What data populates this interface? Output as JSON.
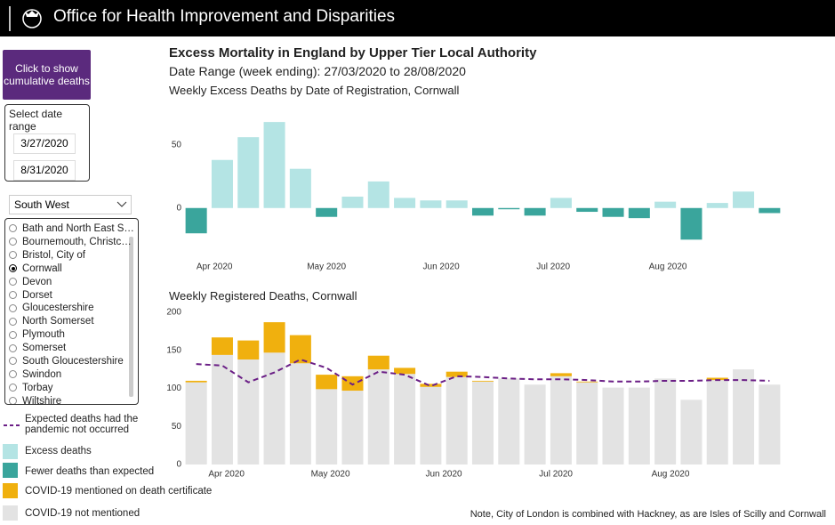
{
  "header": {
    "title": "Office for Health Improvement and Disparities"
  },
  "sidebar": {
    "button": "Click to show cumulative deaths",
    "date_range": {
      "label": "Select date range",
      "start": "3/27/2020",
      "end": "8/31/2020"
    },
    "region": "South West",
    "areas": [
      "Bath and North East S…",
      "Bournemouth, Christc…",
      "Bristol, City of",
      "Cornwall",
      "Devon",
      "Dorset",
      "Gloucestershire",
      "North Somerset",
      "Plymouth",
      "Somerset",
      "South Gloucestershire",
      "Swindon",
      "Torbay",
      "Wiltshire"
    ],
    "selected_index": 3
  },
  "title": "Excess Mortality in England by Upper Tier Local Authority",
  "subtitle": "Date Range (week ending): 27/03/2020 to 28/08/2020",
  "note": "Note, City of London is combined with Hackney, as are Isles of Scilly and Cornwall",
  "chart_data": [
    {
      "type": "bar",
      "title": "Weekly Excess Deaths by Date of Registration, Cornwall",
      "categories": [
        null,
        null,
        null,
        null,
        null,
        null,
        null,
        null,
        null,
        null,
        null,
        null,
        null,
        null,
        null,
        null,
        null,
        null,
        null,
        null,
        null,
        null,
        null
      ],
      "values": [
        -20,
        38,
        56,
        68,
        31,
        -7,
        9,
        21,
        8,
        6,
        6,
        -6,
        -1,
        -6,
        8,
        -3,
        -7,
        -8,
        5,
        -25,
        4,
        13,
        -4
      ],
      "legend": [
        {
          "name": "Excess deaths",
          "color": "#b4e4e4"
        },
        {
          "name": "Fewer deaths than expected",
          "color": "#3aa59c"
        }
      ],
      "xlim": [
        -0.5,
        22.5
      ],
      "xticks": [
        {
          "value": 0.7,
          "label": "Apr 2020"
        },
        {
          "value": 5.0,
          "label": "May 2020"
        },
        {
          "value": 9.4,
          "label": "Jun 2020"
        },
        {
          "value": 13.7,
          "label": "Jul 2020"
        },
        {
          "value": 18.1,
          "label": "Aug 2020"
        }
      ],
      "ylim": [
        -29,
        73
      ],
      "yticks": [
        0,
        50
      ]
    },
    {
      "type": "bar",
      "stacked": true,
      "title": "Weekly Registered Deaths, Cornwall",
      "categories": [
        null,
        null,
        null,
        null,
        null,
        null,
        null,
        null,
        null,
        null,
        null,
        null,
        null,
        null,
        null,
        null,
        null,
        null,
        null,
        null,
        null,
        null,
        null
      ],
      "series": [
        {
          "name": "COVID-19 not mentioned",
          "color": "#e3e3e3",
          "values": [
            108,
            144,
            138,
            147,
            133,
            99,
            97,
            125,
            119,
            102,
            115,
            109,
            113,
            105,
            116,
            108,
            101,
            101,
            113,
            85,
            111,
            125,
            105
          ]
        },
        {
          "name": "COVID-19 mentioned on death certificate",
          "color": "#f0b00e",
          "values": [
            2,
            23,
            25,
            40,
            37,
            19,
            19,
            18,
            8,
            4,
            7,
            1,
            0,
            0,
            4,
            1,
            0,
            0,
            0,
            0,
            3,
            0,
            0
          ]
        },
        {
          "name": "Expected deaths had the pandemic not occurred",
          "type": "line",
          "dashed": true,
          "color": "#6b1f86",
          "values": [
            132,
            130,
            108,
            121,
            138,
            127,
            105,
            122,
            118,
            103,
            116,
            115,
            113,
            112,
            112,
            111,
            109,
            109,
            110,
            110,
            111,
            111,
            110
          ]
        }
      ],
      "xlim": [
        -0.5,
        22.5
      ],
      "xticks": [
        {
          "value": 1.16,
          "label": "Apr 2020"
        },
        {
          "value": 5.15,
          "label": "May 2020"
        },
        {
          "value": 9.5,
          "label": "Jun 2020"
        },
        {
          "value": 13.8,
          "label": "Jul 2020"
        },
        {
          "value": 18.2,
          "label": "Aug 2020"
        }
      ],
      "ylim": [
        0,
        207
      ],
      "yticks": [
        0,
        50,
        100,
        150,
        200
      ]
    }
  ]
}
